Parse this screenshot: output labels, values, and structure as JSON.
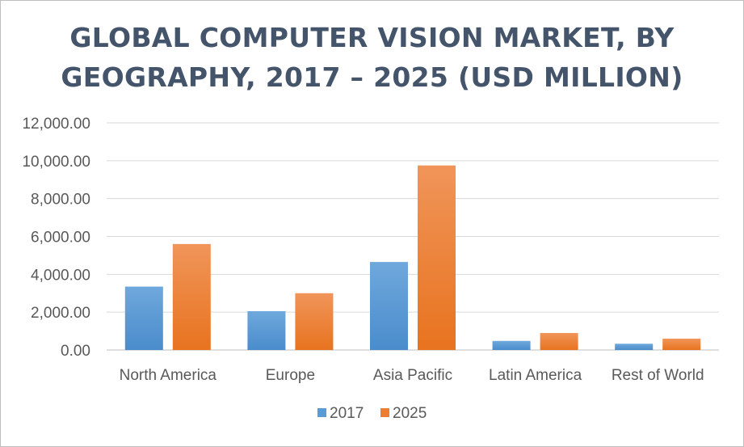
{
  "chart_data": {
    "type": "bar",
    "title_line1": "GLOBAL COMPUTER VISION MARKET, BY",
    "title_line2": "GEOGRAPHY, 2017 – 2025 (USD MILLION)",
    "categories": [
      "North America",
      "Europe",
      "Asia Pacific",
      "Latin America",
      "Rest of World"
    ],
    "series": [
      {
        "name": "2017",
        "values": [
          3350,
          2050,
          4650,
          480,
          330
        ],
        "color": "#5b9bd5"
      },
      {
        "name": "2025",
        "values": [
          5600,
          3000,
          9750,
          900,
          600
        ],
        "color": "#ed7d31"
      }
    ],
    "yticks": [
      "0.00",
      "2,000.00",
      "4,000.00",
      "6,000.00",
      "8,000.00",
      "10,000.00",
      "12,000.00"
    ],
    "ylim": [
      0,
      12000
    ],
    "grid": true,
    "legend_position": "bottom"
  }
}
